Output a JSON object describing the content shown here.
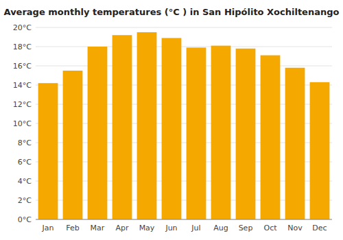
{
  "chart_data": {
    "type": "bar",
    "title": "Average monthly temperatures (°C ) in San Hipólito Xochiltenango",
    "categories": [
      "Jan",
      "Feb",
      "Mar",
      "Apr",
      "May",
      "Jun",
      "Jul",
      "Aug",
      "Sep",
      "Oct",
      "Nov",
      "Dec"
    ],
    "values": [
      14.2,
      15.5,
      18.0,
      19.2,
      19.5,
      18.9,
      17.9,
      18.1,
      17.8,
      17.1,
      15.8,
      14.3
    ],
    "color": "#F5A800",
    "ylim": [
      0,
      20
    ],
    "yticks": [
      {
        "value": 0,
        "label": "0°C"
      },
      {
        "value": 2,
        "label": "2°C"
      },
      {
        "value": 4,
        "label": "4°C"
      },
      {
        "value": 6,
        "label": "6°C"
      },
      {
        "value": 8,
        "label": "8°C"
      },
      {
        "value": 10,
        "label": "10°C"
      },
      {
        "value": 12,
        "label": "12°C"
      },
      {
        "value": 14,
        "label": "14°C"
      },
      {
        "value": 16,
        "label": "16°C"
      },
      {
        "value": 18,
        "label": "18°C"
      },
      {
        "value": 20,
        "label": "20°C"
      }
    ],
    "grid": true
  }
}
